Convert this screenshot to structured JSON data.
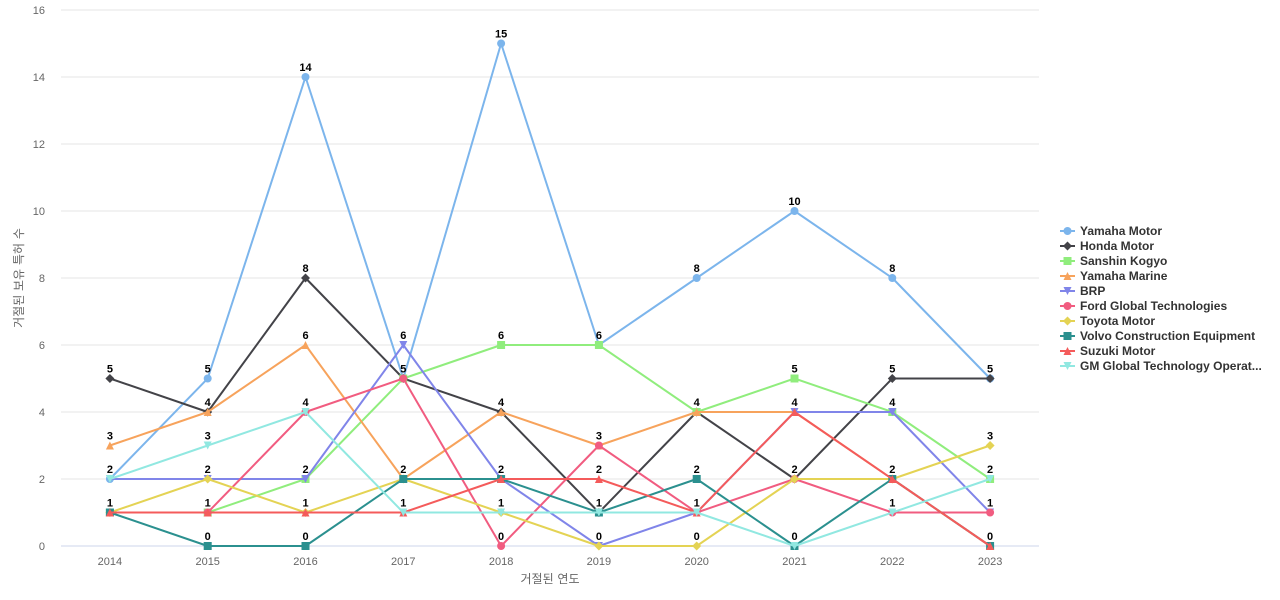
{
  "chart_data": {
    "type": "line",
    "xlabel": "거절된 연도",
    "ylabel": "거절된 보유 특허 수",
    "categories": [
      "2014",
      "2015",
      "2016",
      "2017",
      "2018",
      "2019",
      "2020",
      "2021",
      "2022",
      "2023"
    ],
    "ylim": [
      0,
      16
    ],
    "yticks": [
      0,
      2,
      4,
      6,
      8,
      10,
      12,
      14,
      16
    ],
    "grid": true,
    "legend_position": "right",
    "series": [
      {
        "name": "Yamaha Motor",
        "values": [
          2,
          5,
          14,
          5,
          15,
          6,
          8,
          10,
          8,
          5
        ],
        "color": "#7cb5ec",
        "marker": "circle"
      },
      {
        "name": "Honda Motor",
        "values": [
          5,
          4,
          8,
          5,
          4,
          1,
          4,
          2,
          5,
          5
        ],
        "color": "#434348",
        "marker": "diamond"
      },
      {
        "name": "Sanshin Kogyo",
        "values": [
          1,
          1,
          2,
          5,
          6,
          6,
          4,
          5,
          4,
          2
        ],
        "color": "#90ed7d",
        "marker": "square"
      },
      {
        "name": "Yamaha Marine",
        "values": [
          3,
          4,
          6,
          2,
          4,
          3,
          4,
          4,
          2,
          0
        ],
        "color": "#f7a35c",
        "marker": "triangle"
      },
      {
        "name": "BRP",
        "values": [
          2,
          2,
          2,
          6,
          2,
          0,
          1,
          4,
          4,
          1
        ],
        "color": "#8085e9",
        "marker": "triangle-down"
      },
      {
        "name": "Ford Global Technologies",
        "values": [
          1,
          1,
          4,
          5,
          0,
          3,
          1,
          2,
          1,
          1
        ],
        "color": "#f15c80",
        "marker": "circle"
      },
      {
        "name": "Toyota Motor",
        "values": [
          1,
          2,
          1,
          2,
          1,
          0,
          0,
          2,
          2,
          3
        ],
        "color": "#e4d354",
        "marker": "diamond"
      },
      {
        "name": "Volvo Construction Equipment",
        "values": [
          1,
          0,
          0,
          2,
          2,
          1,
          2,
          0,
          2,
          0
        ],
        "color": "#2b908f",
        "marker": "square"
      },
      {
        "name": "Suzuki Motor",
        "values": [
          1,
          1,
          1,
          1,
          2,
          2,
          1,
          4,
          2,
          0
        ],
        "color": "#f45b5b",
        "marker": "triangle"
      },
      {
        "name": "GM Global Technology Operat...",
        "values": [
          2,
          3,
          4,
          1,
          1,
          1,
          1,
          0,
          1,
          2
        ],
        "color": "#91e8e1",
        "marker": "triangle-down"
      }
    ],
    "point_labels": [
      {
        "x": "2014",
        "values": [
          5,
          3,
          2,
          1
        ]
      },
      {
        "x": "2015",
        "values": [
          5,
          4,
          3,
          2,
          1,
          0
        ]
      },
      {
        "x": "2016",
        "values": [
          14,
          8,
          6,
          4,
          2,
          1,
          0
        ]
      },
      {
        "x": "2017",
        "values": [
          6,
          5,
          2,
          1
        ]
      },
      {
        "x": "2018",
        "values": [
          15,
          6,
          4,
          2,
          1,
          0
        ]
      },
      {
        "x": "2019",
        "values": [
          6,
          3,
          2,
          1,
          0
        ]
      },
      {
        "x": "2020",
        "values": [
          8,
          4,
          2,
          1,
          0
        ]
      },
      {
        "x": "2021",
        "values": [
          10,
          5,
          4,
          2,
          0
        ]
      },
      {
        "x": "2022",
        "values": [
          8,
          5,
          4,
          2,
          1
        ]
      },
      {
        "x": "2023",
        "values": [
          5,
          3,
          2,
          1,
          0
        ]
      }
    ]
  }
}
